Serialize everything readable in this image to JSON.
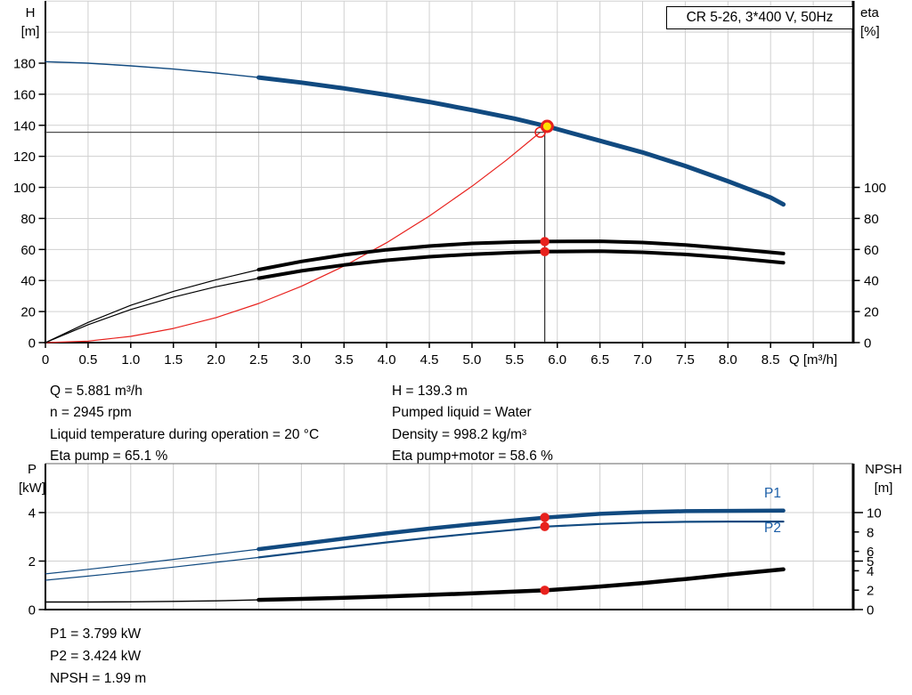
{
  "title_box": "CR 5-26, 3*400 V, 50Hz",
  "axes": {
    "h": "H",
    "h_unit": "[m]",
    "eta": "eta",
    "eta_unit": "[%]",
    "q_label": "Q [m³/h]",
    "p": "P",
    "p_unit": "[kW]",
    "npsh": "NPSH",
    "npsh_unit": "[m]"
  },
  "colors": {
    "blue": "#114a80",
    "label_blue": "#1c5fa8",
    "black": "#000000",
    "red": "#e8211d",
    "yellow": "#ffdf00",
    "grid": "#d0d0d0",
    "crosshair": "#4d4d4d",
    "frame": "#666666"
  },
  "info_left": [
    "Q = 5.881 m³/h",
    "n = 2945 rpm",
    "Liquid temperature during operation = 20 °C",
    "Eta pump = 65.1 %"
  ],
  "info_right": [
    "H = 139.3 m",
    "Pumped liquid = Water",
    "Density = 998.2 kg/m³",
    "Eta pump+motor = 58.6 %"
  ],
  "results": [
    "P1 = 3.799 kW",
    "P2 = 3.424 kW",
    "NPSH = 1.99 m"
  ],
  "curve_labels": {
    "p1": "P1",
    "p2": "P2"
  },
  "chart_data": [
    {
      "type": "line",
      "title": "CR 5-26, 3*400 V, 50Hz",
      "xlabel": "Q [m³/h]",
      "ylabel_left": "H [m]",
      "ylabel_right": "eta [%]",
      "xlim": [
        0,
        9.47
      ],
      "ylim_left": [
        0,
        221
      ],
      "right_axis_note": "eta 0-100 aligned 1:1 with H 0-100",
      "grid": true,
      "x_tick_labels": [
        "0",
        "0.5",
        "1.0",
        "1.5",
        "2.0",
        "2.5",
        "3.0",
        "3.5",
        "4.0",
        "4.5",
        "5.0",
        "5.5",
        "6.0",
        "6.5",
        "7.0",
        "7.5",
        "8.0",
        "8.5"
      ],
      "y_left_ticks": [
        0,
        20,
        40,
        60,
        80,
        100,
        120,
        140,
        160,
        180
      ],
      "y_right_ticks": [
        0,
        20,
        40,
        60,
        80,
        100
      ],
      "duty_point": {
        "Q": 5.881,
        "H": 139.3
      },
      "series": [
        {
          "name": "System curve (requested duty)",
          "color": "red",
          "scale": "h",
          "thin": 1.2,
          "points": [
            [
              0,
              0
            ],
            [
              0.5,
              1.0
            ],
            [
              1,
              4.0
            ],
            [
              1.5,
              9.1
            ],
            [
              2,
              16.1
            ],
            [
              2.5,
              25.2
            ],
            [
              3,
              36.3
            ],
            [
              3.5,
              49.3
            ],
            [
              4,
              64.4
            ],
            [
              4.5,
              81.6
            ],
            [
              5,
              100.7
            ],
            [
              5.4,
              117.4
            ],
            [
              5.8,
              135.5
            ]
          ]
        },
        {
          "name": "Eta pump",
          "color": "black",
          "scale": "eta",
          "thin": 1.2,
          "thick": 4,
          "thick_from": 2.5,
          "points": [
            [
              0,
              0
            ],
            [
              0.5,
              13
            ],
            [
              1,
              24
            ],
            [
              1.5,
              33
            ],
            [
              2,
              40.5
            ],
            [
              2.5,
              47
            ],
            [
              3,
              52.3
            ],
            [
              3.5,
              56.5
            ],
            [
              4,
              59.8
            ],
            [
              4.5,
              62.2
            ],
            [
              5,
              63.9
            ],
            [
              5.5,
              64.8
            ],
            [
              5.881,
              65.1
            ],
            [
              6.5,
              65.3
            ],
            [
              7,
              64.5
            ],
            [
              7.5,
              62.9
            ],
            [
              8,
              60.7
            ],
            [
              8.65,
              57.4
            ]
          ]
        },
        {
          "name": "Eta pump+motor",
          "color": "black",
          "scale": "eta",
          "thin": 1.2,
          "thick": 4,
          "thick_from": 2.5,
          "points": [
            [
              0,
              0
            ],
            [
              0.5,
              11.5
            ],
            [
              1,
              21.3
            ],
            [
              1.5,
              29.3
            ],
            [
              2,
              36
            ],
            [
              2.5,
              41.5
            ],
            [
              3,
              46.2
            ],
            [
              3.5,
              50
            ],
            [
              4,
              53
            ],
            [
              4.5,
              55.3
            ],
            [
              5,
              56.9
            ],
            [
              5.5,
              58
            ],
            [
              5.881,
              58.6
            ],
            [
              6.5,
              58.9
            ],
            [
              7,
              58.2
            ],
            [
              7.5,
              56.8
            ],
            [
              8,
              54.8
            ],
            [
              8.65,
              51.5
            ]
          ]
        },
        {
          "name": "QH pump curve",
          "color": "blue",
          "scale": "h",
          "thin": 1.4,
          "thick": 5,
          "thick_from": 2.5,
          "points": [
            [
              0,
              181
            ],
            [
              0.5,
              180
            ],
            [
              1,
              178.3
            ],
            [
              1.5,
              176.2
            ],
            [
              2,
              173.7
            ],
            [
              2.5,
              170.8
            ],
            [
              3,
              167.5
            ],
            [
              3.5,
              163.8
            ],
            [
              4,
              159.6
            ],
            [
              4.5,
              155
            ],
            [
              5,
              149.8
            ],
            [
              5.5,
              144.3
            ],
            [
              5.881,
              139.3
            ],
            [
              6.5,
              130
            ],
            [
              7,
              122.5
            ],
            [
              7.5,
              113.8
            ],
            [
              8,
              104
            ],
            [
              8.5,
              93.5
            ],
            [
              8.65,
              89
            ]
          ]
        }
      ],
      "markers": {
        "duty_point": {
          "q": 5.881,
          "value": 139.3,
          "scale": "h"
        },
        "requested_point": {
          "q": 5.8,
          "value": 135.5,
          "scale": "h"
        },
        "crosshair": {
          "q": 5.853,
          "h": 135.5
        },
        "dots": [
          {
            "q": 5.853,
            "value": 65.1,
            "scale": "eta"
          },
          {
            "q": 5.853,
            "value": 58.6,
            "scale": "eta"
          }
        ]
      }
    },
    {
      "type": "line",
      "xlabel": "",
      "ylabel_left": "P [kW]",
      "ylabel_right": "NPSH [m]",
      "xlim": [
        0,
        9.47
      ],
      "ylim_left": [
        0,
        6
      ],
      "ylim_right": [
        0,
        15
      ],
      "grid": true,
      "y_left_ticks": [
        0,
        2,
        4
      ],
      "y_right_ticks": [
        0,
        2,
        4,
        5,
        6,
        8,
        10
      ],
      "y_right_long_ticks": [
        0,
        5,
        10
      ],
      "series": [
        {
          "name": "NPSH",
          "color": "black",
          "scale": "npsh",
          "thin": 1.4,
          "thick": 4.5,
          "thick_from": 2.5,
          "points": [
            [
              0,
              0.78
            ],
            [
              0.5,
              0.78
            ],
            [
              1,
              0.8
            ],
            [
              1.5,
              0.84
            ],
            [
              2,
              0.9
            ],
            [
              2.5,
              1.0
            ],
            [
              3,
              1.1
            ],
            [
              3.5,
              1.22
            ],
            [
              4,
              1.36
            ],
            [
              4.5,
              1.51
            ],
            [
              5,
              1.67
            ],
            [
              5.5,
              1.85
            ],
            [
              5.881,
              1.99
            ],
            [
              6.5,
              2.38
            ],
            [
              7,
              2.73
            ],
            [
              7.5,
              3.15
            ],
            [
              8,
              3.6
            ],
            [
              8.65,
              4.15
            ]
          ]
        },
        {
          "name": "P2",
          "color": "blue",
          "scale": "p",
          "thin": 1.2,
          "thick": 2.2,
          "thick_from": 2.5,
          "points": [
            [
              0,
              1.21
            ],
            [
              0.5,
              1.38
            ],
            [
              1,
              1.56
            ],
            [
              1.5,
              1.75
            ],
            [
              2,
              1.95
            ],
            [
              2.5,
              2.15
            ],
            [
              3,
              2.36
            ],
            [
              3.5,
              2.57
            ],
            [
              4,
              2.77
            ],
            [
              4.5,
              2.96
            ],
            [
              5,
              3.13
            ],
            [
              5.5,
              3.29
            ],
            [
              5.881,
              3.424
            ],
            [
              6.5,
              3.53
            ],
            [
              7,
              3.59
            ],
            [
              7.5,
              3.62
            ],
            [
              8,
              3.63
            ],
            [
              8.65,
              3.63
            ]
          ]
        },
        {
          "name": "P1",
          "color": "blue",
          "scale": "p",
          "thin": 1.2,
          "thick": 4.5,
          "thick_from": 2.5,
          "points": [
            [
              0,
              1.47
            ],
            [
              0.5,
              1.66
            ],
            [
              1,
              1.86
            ],
            [
              1.5,
              2.07
            ],
            [
              2,
              2.28
            ],
            [
              2.5,
              2.49
            ],
            [
              3,
              2.71
            ],
            [
              3.5,
              2.93
            ],
            [
              4,
              3.14
            ],
            [
              4.5,
              3.34
            ],
            [
              5,
              3.52
            ],
            [
              5.5,
              3.68
            ],
            [
              5.881,
              3.799
            ],
            [
              6.5,
              3.95
            ],
            [
              7,
              4.02
            ],
            [
              7.5,
              4.06
            ],
            [
              8,
              4.07
            ],
            [
              8.65,
              4.08
            ]
          ]
        }
      ],
      "markers": {
        "dots": [
          {
            "q": 5.853,
            "value": 3.799,
            "scale": "p"
          },
          {
            "q": 5.853,
            "value": 3.424,
            "scale": "p"
          },
          {
            "q": 5.853,
            "value": 1.99,
            "scale": "npsh"
          }
        ]
      }
    }
  ]
}
